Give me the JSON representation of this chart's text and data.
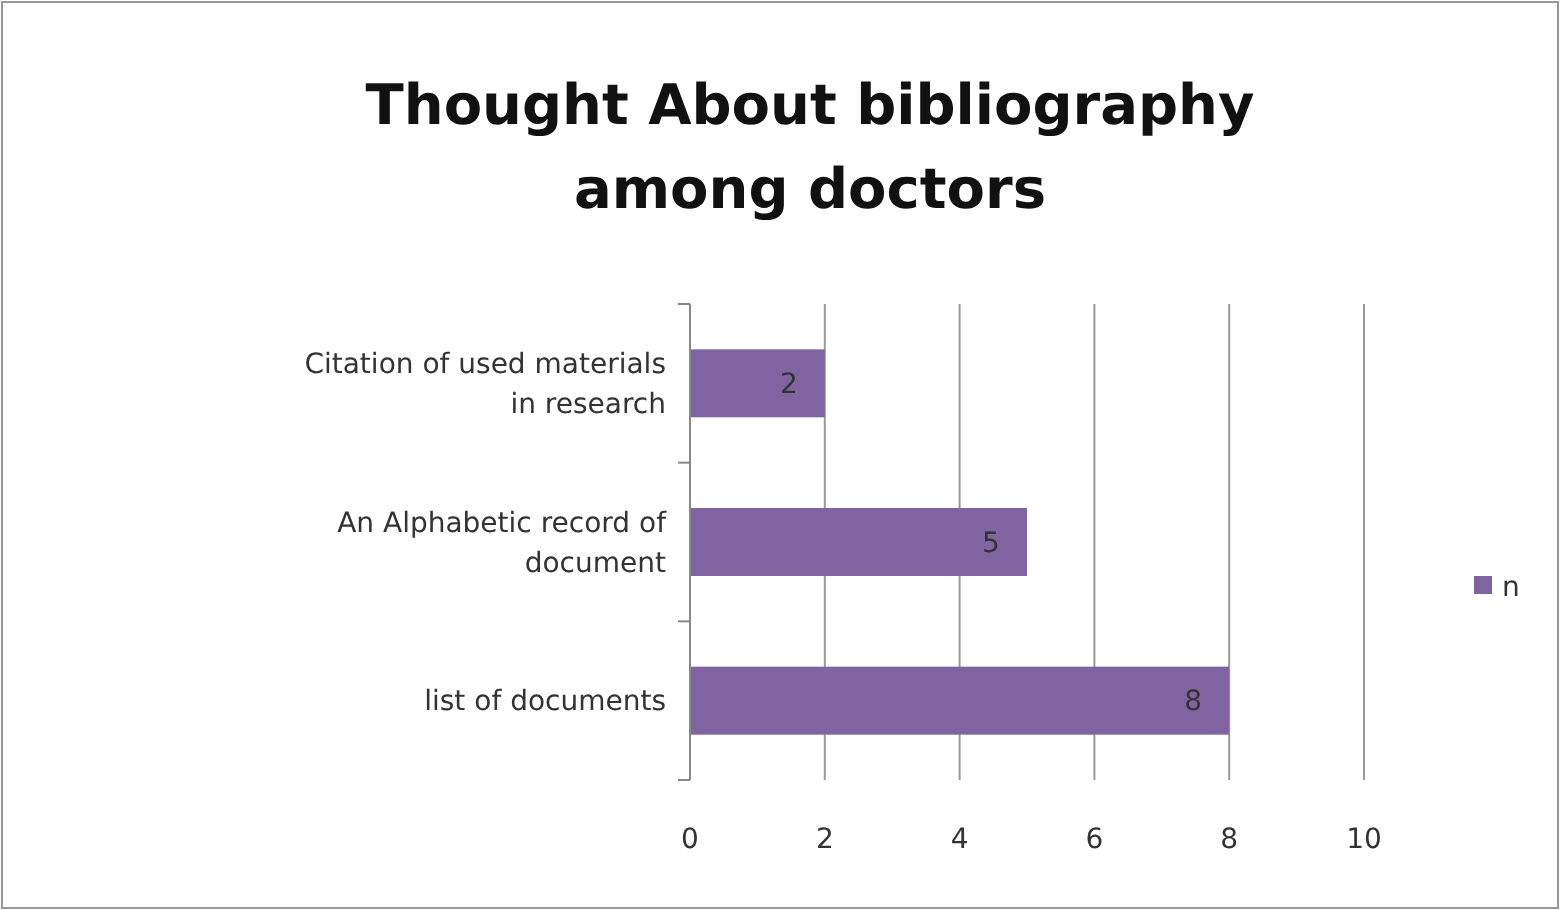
{
  "chart_data": {
    "type": "bar",
    "orientation": "horizontal",
    "title": "Thought About bibliography among doctors",
    "categories": [
      "Citation of used materials in research",
      "An Alphabetic record of document",
      "list of documents"
    ],
    "series": [
      {
        "name": "n",
        "color": "#8064a2",
        "values": [
          2,
          5,
          8
        ]
      }
    ],
    "xlim": [
      0,
      10
    ],
    "xticks": [
      0,
      2,
      4,
      6,
      8,
      10
    ],
    "grid": "x",
    "legend": "right",
    "data_labels": true
  }
}
